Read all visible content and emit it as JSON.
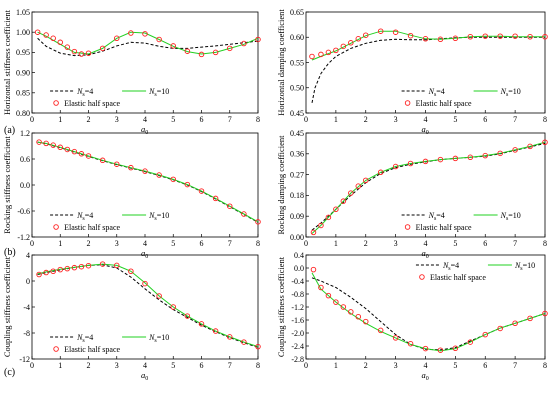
{
  "figure": {
    "panel_labels": [
      "(a)",
      "(b)",
      "(c)"
    ],
    "x_axis_title_main": "a",
    "x_axis_title_sub": "0",
    "legend": {
      "ns4_main": "N",
      "ns4_sub": "s",
      "ns4_eq": "=4",
      "ns10_main": "N",
      "ns10_sub": "s",
      "ns10_eq": "=10",
      "elastic": "Elastic half space"
    },
    "colors": {
      "ns4": "#000000",
      "ns10": "#22d022",
      "elastic": "#ff2020"
    }
  },
  "chart_data": [
    {
      "id": "hstiff",
      "type": "line",
      "ylabel": "Horizontal stiffness coefficient",
      "xlim": [
        0,
        8
      ],
      "ylim": [
        0.8,
        1.05
      ],
      "xticks": [
        0,
        1,
        2,
        3,
        4,
        5,
        6,
        7,
        8
      ],
      "yticks": [
        0.8,
        0.85,
        0.9,
        0.95,
        1.0,
        1.05
      ],
      "ytick_labels": [
        "0.80",
        "0.85",
        "0.90",
        "0.95",
        "1.00",
        "1.05"
      ],
      "legend_position": "bottom-left",
      "series": [
        {
          "name": "Ns=4",
          "style": "dashed",
          "x": [
            0.2,
            0.5,
            1.0,
            1.5,
            2.0,
            2.5,
            3.0,
            3.5,
            4.0,
            4.5,
            5.0,
            5.5,
            6.0,
            6.5,
            7.0,
            7.5,
            8.0
          ],
          "y": [
            0.985,
            0.965,
            0.948,
            0.942,
            0.944,
            0.953,
            0.966,
            0.975,
            0.973,
            0.965,
            0.96,
            0.96,
            0.963,
            0.966,
            0.97,
            0.974,
            0.978
          ]
        },
        {
          "name": "Ns=10",
          "style": "solid",
          "x": [
            0.2,
            0.5,
            1.0,
            1.5,
            2.0,
            2.5,
            3.0,
            3.5,
            4.0,
            4.5,
            5.0,
            5.5,
            6.0,
            6.5,
            7.0,
            7.5,
            8.0
          ],
          "y": [
            1.0,
            0.99,
            0.97,
            0.95,
            0.946,
            0.96,
            0.985,
            1.0,
            0.998,
            0.982,
            0.965,
            0.952,
            0.946,
            0.95,
            0.96,
            0.97,
            0.985
          ]
        },
        {
          "name": "Elastic half space",
          "style": "marker",
          "x": [
            0.2,
            0.5,
            0.75,
            1.0,
            1.25,
            1.5,
            1.75,
            2.0,
            2.5,
            3.0,
            3.5,
            4.0,
            4.5,
            5.0,
            5.5,
            6.0,
            6.5,
            7.0,
            7.5,
            8.0
          ],
          "y": [
            1.0,
            0.993,
            0.985,
            0.975,
            0.963,
            0.952,
            0.946,
            0.948,
            0.96,
            0.985,
            0.998,
            0.996,
            0.982,
            0.966,
            0.953,
            0.945,
            0.95,
            0.96,
            0.972,
            0.982
          ]
        }
      ]
    },
    {
      "id": "hdamp",
      "type": "line",
      "ylabel": "Horizontal damping coefficient",
      "xlim": [
        0,
        8
      ],
      "ylim": [
        0.45,
        0.65
      ],
      "xticks": [
        0,
        1,
        2,
        3,
        4,
        5,
        6,
        7,
        8
      ],
      "yticks": [
        0.45,
        0.5,
        0.55,
        0.6,
        0.65
      ],
      "ytick_labels": [
        "0.45",
        "0.50",
        "0.55",
        "0.60",
        "0.65"
      ],
      "legend_position": "bottom-right",
      "series": [
        {
          "name": "Ns=4",
          "style": "dashed",
          "x": [
            0.2,
            0.3,
            0.5,
            0.75,
            1.0,
            1.5,
            2.0,
            2.5,
            3.0,
            3.5,
            4.0,
            4.5,
            5.0,
            5.5,
            6.0,
            6.5,
            7.0,
            7.5,
            8.0
          ],
          "y": [
            0.47,
            0.5,
            0.528,
            0.548,
            0.562,
            0.578,
            0.588,
            0.594,
            0.596,
            0.595,
            0.595,
            0.597,
            0.599,
            0.6,
            0.6,
            0.6,
            0.6,
            0.6,
            0.6
          ]
        },
        {
          "name": "Ns=10",
          "style": "solid",
          "x": [
            0.2,
            0.5,
            1.0,
            1.5,
            2.0,
            2.5,
            3.0,
            3.5,
            4.0,
            4.5,
            5.0,
            5.5,
            6.0,
            6.5,
            7.0,
            7.5,
            8.0
          ],
          "y": [
            0.555,
            0.562,
            0.573,
            0.588,
            0.603,
            0.612,
            0.612,
            0.604,
            0.597,
            0.596,
            0.598,
            0.601,
            0.602,
            0.602,
            0.601,
            0.601,
            0.601
          ]
        },
        {
          "name": "Elastic half space",
          "style": "marker",
          "x": [
            0.2,
            0.5,
            0.75,
            1.0,
            1.25,
            1.5,
            1.75,
            2.0,
            2.5,
            3.0,
            3.5,
            4.0,
            4.5,
            5.0,
            5.5,
            6.0,
            6.5,
            7.0,
            7.5,
            8.0
          ],
          "y": [
            0.562,
            0.566,
            0.57,
            0.574,
            0.582,
            0.589,
            0.597,
            0.604,
            0.612,
            0.61,
            0.603,
            0.597,
            0.596,
            0.598,
            0.601,
            0.602,
            0.602,
            0.602,
            0.601,
            0.601
          ]
        }
      ]
    },
    {
      "id": "rstiff",
      "type": "line",
      "ylabel": "Rocking stiffness coefficient",
      "xlim": [
        0,
        8
      ],
      "ylim": [
        -1.2,
        1.2
      ],
      "xticks": [
        0,
        1,
        2,
        3,
        4,
        5,
        6,
        7,
        8
      ],
      "yticks": [
        -1.2,
        -0.6,
        0.0,
        0.6,
        1.2
      ],
      "ytick_labels": [
        "-1.2",
        "-0.6",
        "0.0",
        "0.6",
        "1.2"
      ],
      "legend_position": "bottom-left",
      "series": [
        {
          "name": "Ns=4",
          "style": "dashed",
          "x": [
            0.2,
            0.5,
            1,
            1.5,
            2,
            2.5,
            3,
            3.5,
            4,
            4.5,
            5,
            5.5,
            6,
            6.5,
            7,
            7.5,
            8
          ],
          "y": [
            0.99,
            0.95,
            0.86,
            0.76,
            0.66,
            0.56,
            0.47,
            0.39,
            0.31,
            0.22,
            0.12,
            0.0,
            -0.15,
            -0.32,
            -0.5,
            -0.68,
            -0.86
          ]
        },
        {
          "name": "Ns=10",
          "style": "solid",
          "x": [
            0.2,
            0.5,
            1,
            1.5,
            2,
            2.5,
            3,
            3.5,
            4,
            4.5,
            5,
            5.5,
            6,
            6.5,
            7,
            7.5,
            8
          ],
          "y": [
            0.99,
            0.96,
            0.87,
            0.77,
            0.67,
            0.57,
            0.48,
            0.4,
            0.32,
            0.23,
            0.13,
            0.01,
            -0.14,
            -0.31,
            -0.49,
            -0.67,
            -0.85
          ]
        },
        {
          "name": "Elastic half space",
          "style": "marker",
          "x": [
            0.25,
            0.5,
            0.75,
            1,
            1.25,
            1.5,
            1.75,
            2,
            2.5,
            3,
            3.5,
            4,
            4.5,
            5,
            5.5,
            6,
            6.5,
            7,
            7.5,
            8
          ],
          "y": [
            0.99,
            0.96,
            0.92,
            0.87,
            0.82,
            0.77,
            0.72,
            0.67,
            0.57,
            0.48,
            0.4,
            0.32,
            0.23,
            0.13,
            0.01,
            -0.14,
            -0.31,
            -0.49,
            -0.67,
            -0.85
          ]
        }
      ]
    },
    {
      "id": "rdamp",
      "type": "line",
      "ylabel": "Rocking damping coefficient",
      "xlim": [
        0,
        8
      ],
      "ylim": [
        0.0,
        0.45
      ],
      "xticks": [
        0,
        1,
        2,
        3,
        4,
        5,
        6,
        7,
        8
      ],
      "yticks": [
        0.0,
        0.09,
        0.18,
        0.27,
        0.36,
        0.45
      ],
      "ytick_labels": [
        "0.00",
        "0.09",
        "0.18",
        "0.27",
        "0.36",
        "0.45"
      ],
      "legend_position": "bottom-right",
      "series": [
        {
          "name": "Ns=4",
          "style": "dashed",
          "x": [
            0.2,
            0.5,
            1,
            1.5,
            2,
            2.5,
            3,
            3.5,
            4,
            4.5,
            5,
            5.5,
            6,
            6.5,
            7,
            7.5,
            8
          ],
          "y": [
            0.03,
            0.06,
            0.12,
            0.18,
            0.235,
            0.275,
            0.3,
            0.315,
            0.325,
            0.335,
            0.34,
            0.345,
            0.35,
            0.36,
            0.375,
            0.39,
            0.405
          ]
        },
        {
          "name": "Ns=10",
          "style": "solid",
          "x": [
            0.2,
            0.5,
            1,
            1.5,
            2,
            2.5,
            3,
            3.5,
            4,
            4.5,
            5,
            5.5,
            6,
            6.5,
            7,
            7.5,
            8
          ],
          "y": [
            0.015,
            0.05,
            0.12,
            0.19,
            0.245,
            0.28,
            0.305,
            0.318,
            0.327,
            0.335,
            0.34,
            0.345,
            0.352,
            0.362,
            0.377,
            0.392,
            0.41
          ]
        },
        {
          "name": "Elastic half space",
          "style": "marker",
          "x": [
            0.25,
            0.5,
            0.75,
            1,
            1.25,
            1.5,
            1.75,
            2,
            2.5,
            3,
            3.5,
            4,
            4.5,
            5,
            5.5,
            6,
            6.5,
            7,
            7.5,
            8
          ],
          "y": [
            0.02,
            0.05,
            0.085,
            0.12,
            0.155,
            0.19,
            0.22,
            0.245,
            0.28,
            0.305,
            0.318,
            0.327,
            0.335,
            0.34,
            0.345,
            0.352,
            0.362,
            0.377,
            0.392,
            0.41
          ]
        }
      ]
    },
    {
      "id": "cstiff",
      "type": "line",
      "ylabel": "Coupling stiffness coefficient",
      "xlim": [
        0,
        8
      ],
      "ylim": [
        -12,
        4
      ],
      "xticks": [
        0,
        1,
        2,
        3,
        4,
        5,
        6,
        7,
        8
      ],
      "yticks": [
        -12,
        -8,
        -4,
        0,
        4
      ],
      "ytick_labels": [
        "-12",
        "-8",
        "-4",
        "0",
        "4"
      ],
      "legend_position": "bottom-left",
      "series": [
        {
          "name": "Ns=4",
          "style": "dashed",
          "x": [
            0.2,
            0.5,
            1,
            1.5,
            2,
            2.5,
            3,
            3.5,
            4,
            4.5,
            5,
            5.5,
            6,
            6.5,
            7,
            7.5,
            8
          ],
          "y": [
            1.0,
            1.3,
            1.7,
            2.1,
            2.4,
            2.5,
            2.0,
            0.6,
            -1.2,
            -2.9,
            -4.4,
            -5.6,
            -6.8,
            -7.8,
            -8.7,
            -9.5,
            -10.2
          ]
        },
        {
          "name": "Ns=10",
          "style": "solid",
          "x": [
            0.2,
            0.5,
            1,
            1.5,
            2,
            2.5,
            3,
            3.5,
            4,
            4.5,
            5,
            5.5,
            6,
            6.5,
            7,
            7.5,
            8
          ],
          "y": [
            1.1,
            1.4,
            1.8,
            2.1,
            2.4,
            2.6,
            2.4,
            1.5,
            -0.3,
            -2.3,
            -4.0,
            -5.4,
            -6.6,
            -7.7,
            -8.6,
            -9.4,
            -10.1
          ]
        },
        {
          "name": "Elastic half space",
          "style": "marker",
          "x": [
            0.25,
            0.5,
            0.75,
            1,
            1.25,
            1.5,
            1.75,
            2,
            2.5,
            3,
            3.5,
            4,
            4.5,
            5,
            5.5,
            6,
            6.5,
            7,
            7.5,
            8
          ],
          "y": [
            1.0,
            1.3,
            1.5,
            1.75,
            1.9,
            2.05,
            2.2,
            2.35,
            2.6,
            2.4,
            1.5,
            -0.4,
            -2.3,
            -4.0,
            -5.4,
            -6.6,
            -7.7,
            -8.6,
            -9.4,
            -10.1
          ]
        }
      ]
    },
    {
      "id": "cdamp",
      "type": "line",
      "ylabel": "Coupling stiffness coefficient",
      "xlim": [
        0,
        8
      ],
      "ylim": [
        -2.8,
        0.4
      ],
      "xticks": [
        0,
        1,
        2,
        3,
        4,
        5,
        6,
        7,
        8
      ],
      "yticks": [
        0.4,
        0.0,
        -0.4,
        -0.8,
        -1.2,
        -1.6,
        -2.0,
        -2.4,
        -2.8
      ],
      "ytick_labels": [
        "0.4",
        "0.0",
        "-0.4",
        "-0.8",
        "-1.2",
        "-1.6",
        "-2.0",
        "-2.4",
        "-2.8"
      ],
      "legend_position": "top-right",
      "series": [
        {
          "name": "Ns=4",
          "style": "dashed",
          "x": [
            0.2,
            0.5,
            1,
            1.5,
            2,
            2.5,
            3,
            3.5,
            4,
            4.5,
            5,
            5.5,
            6,
            6.5,
            7,
            7.5,
            8
          ],
          "y": [
            -0.3,
            -0.4,
            -0.6,
            -0.9,
            -1.25,
            -1.65,
            -2.05,
            -2.35,
            -2.5,
            -2.52,
            -2.45,
            -2.25,
            -2.05,
            -1.85,
            -1.7,
            -1.55,
            -1.4
          ]
        },
        {
          "name": "Ns=10",
          "style": "solid",
          "x": [
            0.2,
            0.5,
            1,
            1.5,
            2,
            2.5,
            3,
            3.5,
            4,
            4.5,
            5,
            5.5,
            6,
            6.5,
            7,
            7.5,
            8
          ],
          "y": [
            -0.15,
            -0.65,
            -1.05,
            -1.4,
            -1.7,
            -1.95,
            -2.15,
            -2.35,
            -2.48,
            -2.55,
            -2.48,
            -2.28,
            -2.05,
            -1.85,
            -1.7,
            -1.55,
            -1.4
          ]
        },
        {
          "name": "Elastic half space",
          "style": "marker",
          "x": [
            0.25,
            0.5,
            0.75,
            1,
            1.25,
            1.5,
            1.75,
            2,
            2.5,
            3,
            3.5,
            4,
            4.5,
            5,
            5.5,
            6,
            6.5,
            7,
            7.5,
            8
          ],
          "y": [
            -0.05,
            -0.6,
            -0.85,
            -1.05,
            -1.2,
            -1.35,
            -1.5,
            -1.65,
            -1.92,
            -2.15,
            -2.33,
            -2.48,
            -2.53,
            -2.47,
            -2.28,
            -2.05,
            -1.86,
            -1.7,
            -1.55,
            -1.4
          ]
        }
      ]
    }
  ]
}
